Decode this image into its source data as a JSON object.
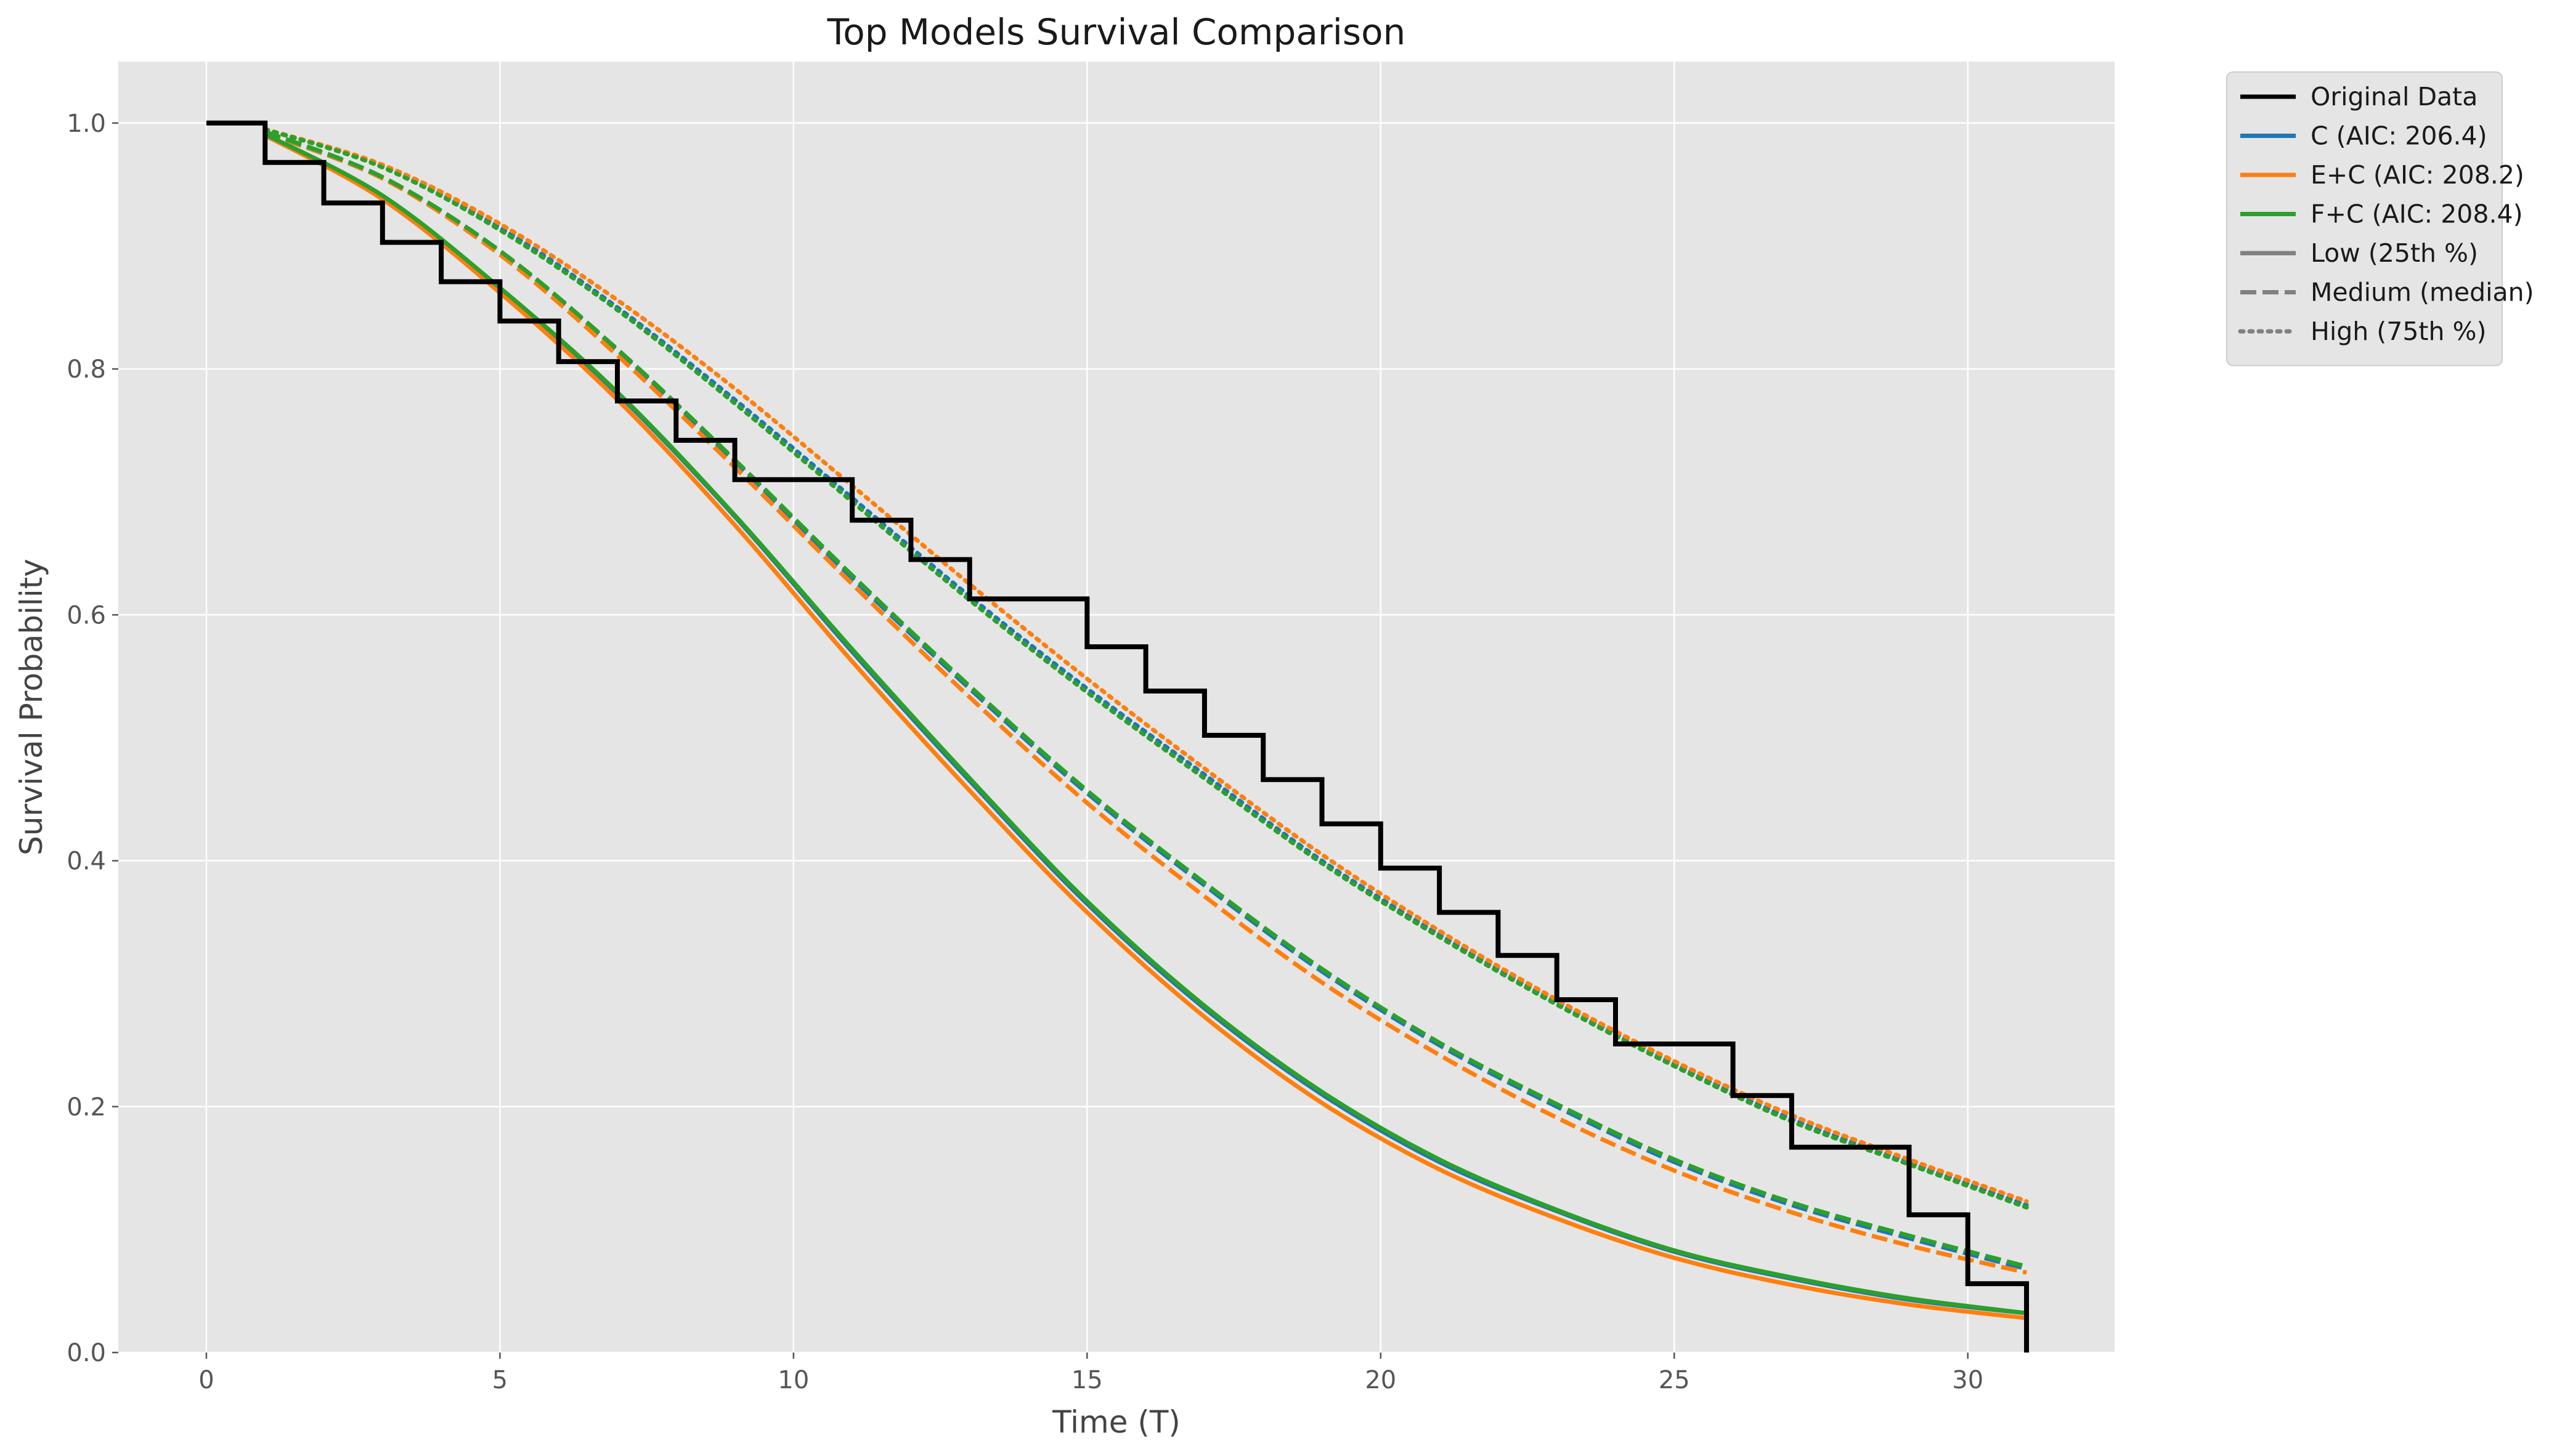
{
  "chart_data": {
    "type": "line",
    "title": "Top Models Survival Comparison",
    "xlabel": "Time (T)",
    "ylabel": "Survival Probability",
    "xlim": [
      -1.5,
      32.5
    ],
    "ylim": [
      0.0,
      1.05
    ],
    "xticks": [
      0,
      5,
      10,
      15,
      20,
      25,
      30
    ],
    "yticks": [
      0.0,
      0.2,
      0.4,
      0.6,
      0.8,
      1.0
    ],
    "x_tick_labels": [
      "0",
      "5",
      "10",
      "15",
      "20",
      "25",
      "30"
    ],
    "y_tick_labels": [
      "0.0",
      "0.2",
      "0.4",
      "0.6",
      "0.8",
      "1.0"
    ],
    "grid": true,
    "legend_position": "outside-top-right",
    "colors": {
      "background": "#e5e5e5",
      "grid": "#ffffff",
      "original": "#000000",
      "C": "#1f77b4",
      "E+C": "#ff7f0e",
      "F+C": "#2ca02c",
      "style_key": "#808080"
    },
    "original_data": {
      "name": "Original Data",
      "type": "step",
      "x": [
        0,
        1,
        2,
        3,
        4,
        5,
        6,
        7,
        8,
        9,
        10,
        11,
        12,
        13,
        14,
        15,
        16,
        17,
        18,
        19,
        20,
        21,
        22,
        23,
        24,
        25,
        26,
        27,
        28,
        29,
        30,
        31
      ],
      "y": [
        1.0,
        0.968,
        0.935,
        0.903,
        0.871,
        0.839,
        0.806,
        0.774,
        0.742,
        0.71,
        0.71,
        0.677,
        0.645,
        0.613,
        0.613,
        0.574,
        0.538,
        0.502,
        0.466,
        0.43,
        0.394,
        0.358,
        0.323,
        0.287,
        0.251,
        0.251,
        0.209,
        0.167,
        0.167,
        0.112,
        0.056,
        0.0
      ]
    },
    "series": [
      {
        "name": "C (AIC: 206.4)",
        "model": "C",
        "level": "low",
        "x": [
          1,
          3,
          5,
          7,
          9,
          11,
          13,
          15,
          17,
          19,
          21,
          23,
          25,
          27,
          29,
          31
        ],
        "y": [
          0.99,
          0.94,
          0.865,
          0.78,
          0.68,
          0.57,
          0.465,
          0.365,
          0.28,
          0.21,
          0.155,
          0.115,
          0.082,
          0.06,
          0.043,
          0.032
        ]
      },
      {
        "name": "C (AIC: 206.4)",
        "model": "C",
        "level": "medium",
        "x": [
          1,
          3,
          5,
          7,
          9,
          11,
          13,
          15,
          17,
          19,
          21,
          23,
          25,
          27,
          29,
          31
        ],
        "y": [
          0.992,
          0.955,
          0.895,
          0.815,
          0.725,
          0.63,
          0.54,
          0.455,
          0.38,
          0.31,
          0.25,
          0.2,
          0.155,
          0.12,
          0.093,
          0.068
        ]
      },
      {
        "name": "C (AIC: 206.4)",
        "model": "C",
        "level": "high",
        "x": [
          1,
          3,
          5,
          7,
          9,
          11,
          13,
          15,
          17,
          19,
          21,
          23,
          25,
          27,
          29,
          31
        ],
        "y": [
          0.995,
          0.965,
          0.915,
          0.85,
          0.775,
          0.695,
          0.615,
          0.54,
          0.47,
          0.4,
          0.34,
          0.285,
          0.235,
          0.19,
          0.155,
          0.12
        ]
      },
      {
        "name": "E+C (AIC: 208.2)",
        "model": "E+C",
        "level": "low",
        "x": [
          1,
          3,
          5,
          7,
          9,
          11,
          13,
          15,
          17,
          19,
          21,
          23,
          25,
          27,
          29,
          31
        ],
        "y": [
          0.99,
          0.938,
          0.862,
          0.775,
          0.673,
          0.562,
          0.457,
          0.358,
          0.273,
          0.203,
          0.149,
          0.109,
          0.077,
          0.055,
          0.039,
          0.028
        ]
      },
      {
        "name": "E+C (AIC: 208.2)",
        "model": "E+C",
        "level": "medium",
        "x": [
          1,
          3,
          5,
          7,
          9,
          11,
          13,
          15,
          17,
          19,
          21,
          23,
          25,
          27,
          29,
          31
        ],
        "y": [
          0.992,
          0.955,
          0.893,
          0.811,
          0.72,
          0.625,
          0.533,
          0.447,
          0.371,
          0.301,
          0.242,
          0.191,
          0.148,
          0.114,
          0.087,
          0.065
        ]
      },
      {
        "name": "E+C (AIC: 208.2)",
        "model": "E+C",
        "level": "high",
        "x": [
          1,
          3,
          5,
          7,
          9,
          11,
          13,
          15,
          17,
          19,
          21,
          23,
          25,
          27,
          29,
          31
        ],
        "y": [
          0.995,
          0.966,
          0.918,
          0.856,
          0.784,
          0.705,
          0.625,
          0.548,
          0.475,
          0.405,
          0.343,
          0.287,
          0.237,
          0.193,
          0.157,
          0.123
        ]
      },
      {
        "name": "F+C (AIC: 208.4)",
        "model": "F+C",
        "level": "low",
        "x": [
          1,
          3,
          5,
          7,
          9,
          11,
          13,
          15,
          17,
          19,
          21,
          23,
          25,
          27,
          29,
          31
        ],
        "y": [
          0.991,
          0.941,
          0.866,
          0.781,
          0.681,
          0.572,
          0.467,
          0.367,
          0.282,
          0.212,
          0.157,
          0.116,
          0.083,
          0.061,
          0.044,
          0.032
        ]
      },
      {
        "name": "F+C (AIC: 208.4)",
        "model": "F+C",
        "level": "medium",
        "x": [
          1,
          3,
          5,
          7,
          9,
          11,
          13,
          15,
          17,
          19,
          21,
          23,
          25,
          27,
          29,
          31
        ],
        "y": [
          0.993,
          0.956,
          0.896,
          0.816,
          0.726,
          0.632,
          0.542,
          0.457,
          0.382,
          0.312,
          0.252,
          0.202,
          0.157,
          0.122,
          0.095,
          0.07
        ]
      },
      {
        "name": "F+C (AIC: 208.4)",
        "model": "F+C",
        "level": "high",
        "x": [
          1,
          3,
          5,
          7,
          9,
          11,
          13,
          15,
          17,
          19,
          21,
          23,
          25,
          27,
          29,
          31
        ],
        "y": [
          0.995,
          0.964,
          0.913,
          0.848,
          0.772,
          0.692,
          0.612,
          0.537,
          0.467,
          0.398,
          0.338,
          0.283,
          0.233,
          0.188,
          0.153,
          0.118
        ]
      }
    ],
    "legend": [
      {
        "label": "Original Data",
        "color_key": "original",
        "dash": "solid"
      },
      {
        "label": "C (AIC: 206.4)",
        "color_key": "C",
        "dash": "solid"
      },
      {
        "label": "E+C (AIC: 208.2)",
        "color_key": "E+C",
        "dash": "solid"
      },
      {
        "label": "F+C (AIC: 208.4)",
        "color_key": "F+C",
        "dash": "solid"
      },
      {
        "label": "Low (25th %)",
        "color_key": "style_key",
        "dash": "solid"
      },
      {
        "label": "Medium (median)",
        "color_key": "style_key",
        "dash": "dashed"
      },
      {
        "label": "High (75th %)",
        "color_key": "style_key",
        "dash": "dotted"
      }
    ]
  }
}
